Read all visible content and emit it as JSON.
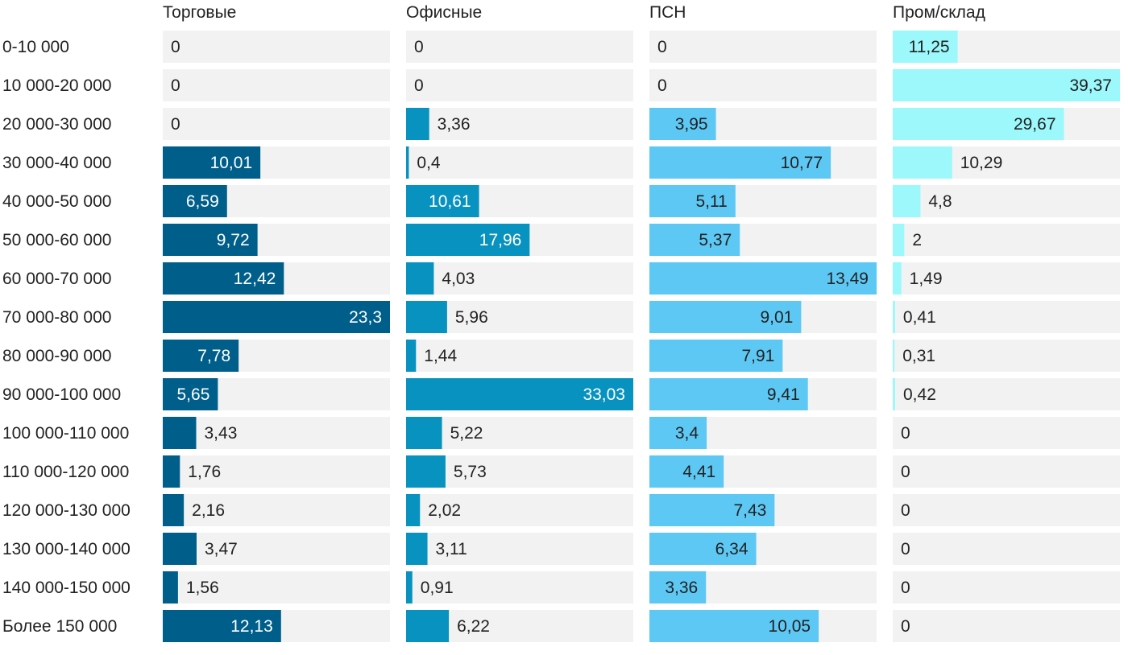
{
  "chart_data": {
    "type": "bar",
    "orientation": "horizontal",
    "layout": "small-multiples",
    "categories": [
      "0-10 000",
      "10 000-20 000",
      "20 000-30 000",
      "30 000-40 000",
      "40 000-50 000",
      "50 000-60 000",
      "60 000-70 000",
      "70 000-80 000",
      "80 000-90 000",
      "90 000-100 000",
      "100 000-110 000",
      "110 000-120 000",
      "120 000-130 000",
      "130 000-140 000",
      "140 000-150 000",
      "Более 150 000"
    ],
    "series": [
      {
        "name": "Торговые",
        "color": "#005e8a",
        "values": [
          0,
          0,
          0,
          10.01,
          6.59,
          9.72,
          12.42,
          23.3,
          7.78,
          5.65,
          3.43,
          1.76,
          2.16,
          3.47,
          1.56,
          12.13
        ],
        "labels": [
          "0",
          "0",
          "0",
          "10,01",
          "6,59",
          "9,72",
          "12,42",
          "23,3",
          "7,78",
          "5,65",
          "3,43",
          "1,76",
          "2,16",
          "3,47",
          "1,56",
          "12,13"
        ]
      },
      {
        "name": "Офисные",
        "color": "#0892bf",
        "values": [
          0,
          0,
          3.36,
          0.4,
          10.61,
          17.96,
          4.03,
          5.96,
          1.44,
          33.03,
          5.22,
          5.73,
          2.02,
          3.11,
          0.91,
          6.22
        ],
        "labels": [
          "0",
          "0",
          "3,36",
          "0,4",
          "10,61",
          "17,96",
          "4,03",
          "5,96",
          "1,44",
          "33,03",
          "5,22",
          "5,73",
          "2,02",
          "3,11",
          "0,91",
          "6,22"
        ]
      },
      {
        "name": "ПСН",
        "color": "#5ec8f5",
        "values": [
          0,
          0,
          3.95,
          10.77,
          5.11,
          5.37,
          13.49,
          9.01,
          7.91,
          9.41,
          3.4,
          4.41,
          7.43,
          6.34,
          3.36,
          10.05
        ],
        "labels": [
          "0",
          "0",
          "3,95",
          "10,77",
          "5,11",
          "5,37",
          "13,49",
          "9,01",
          "7,91",
          "9,41",
          "3,4",
          "4,41",
          "7,43",
          "6,34",
          "3,36",
          "10,05"
        ]
      },
      {
        "name": "Пром/склад",
        "color": "#9cf8fb",
        "values": [
          11.25,
          39.37,
          29.67,
          10.29,
          4.8,
          2,
          1.49,
          0.41,
          0.31,
          0.42,
          0,
          0,
          0,
          0,
          0,
          0
        ],
        "labels": [
          "11,25",
          "39,37",
          "29,67",
          "10,29",
          "4,8",
          "2",
          "1,49",
          "0,41",
          "0,31",
          "0,42",
          "0",
          "0",
          "0",
          "0",
          "0",
          "0"
        ]
      }
    ],
    "background_track_color": "#f2f2f2",
    "grid": false,
    "legend": "none"
  }
}
